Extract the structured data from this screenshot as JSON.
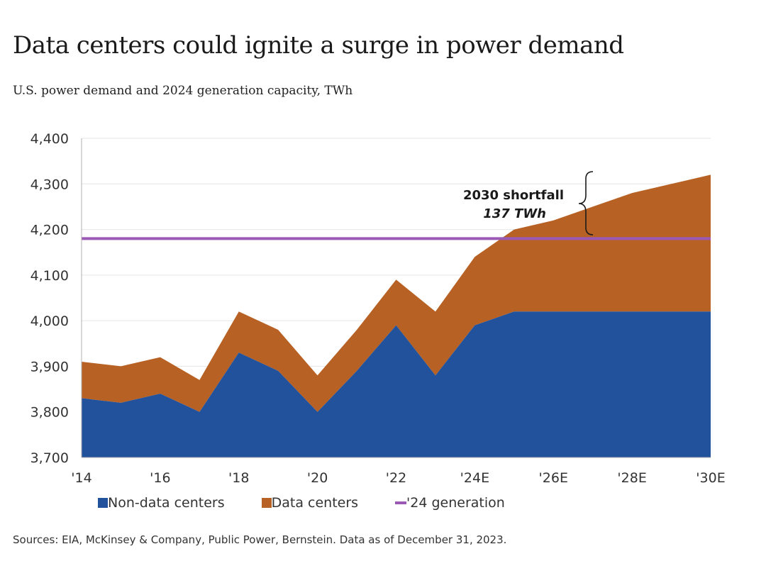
{
  "title": "Data centers could ignite a surge in power demand",
  "subtitle": "U.S. power demand and 2024 generation capacity, TWh",
  "source": "Sources: EIA, McKinsey & Company, Public Power, Bernstein. Data as of December 31, 2023.",
  "colors": {
    "non_data_centers": "#22529b",
    "data_centers": "#b86124",
    "generation": "#9b59b6",
    "gridline": "#e6e6e6",
    "axis": "#b0b0b0"
  },
  "legend": {
    "non_data": "Non-data centers",
    "data": "Data centers",
    "generation": "'24 generation"
  },
  "annotation": {
    "label": "2030 shortfall",
    "value": "137 TWh"
  },
  "chart_data": {
    "type": "area",
    "x": [
      "2014",
      "2015",
      "2016",
      "2017",
      "2018",
      "2019",
      "2020",
      "2021",
      "2022",
      "2023",
      "2024E",
      "2025E",
      "2026E",
      "2027E",
      "2028E",
      "2029E",
      "2030E"
    ],
    "x_tick_labels": [
      "'14",
      "",
      "'16",
      "",
      "'18",
      "",
      "'20",
      "",
      "'22",
      "",
      "'24E",
      "",
      "'26E",
      "",
      "'28E",
      "",
      "'30E"
    ],
    "y_tick_labels": [
      "3,700",
      "3,800",
      "3,900",
      "4,000",
      "4,100",
      "4,200",
      "4,300",
      "4,400"
    ],
    "ylim": [
      3700,
      4400
    ],
    "series": [
      {
        "name": "Non-data centers",
        "values": [
          3830,
          3820,
          3840,
          3800,
          3930,
          3890,
          3800,
          3890,
          3990,
          3880,
          3990,
          4020,
          4020,
          4020,
          4020,
          4020,
          4020
        ]
      },
      {
        "name": "Data centers",
        "values": [
          80,
          80,
          80,
          70,
          90,
          90,
          80,
          90,
          100,
          140,
          150,
          180,
          200,
          230,
          260,
          280,
          300
        ]
      }
    ],
    "generation_2024": 4180,
    "grid": true,
    "legend_position": "bottom"
  }
}
